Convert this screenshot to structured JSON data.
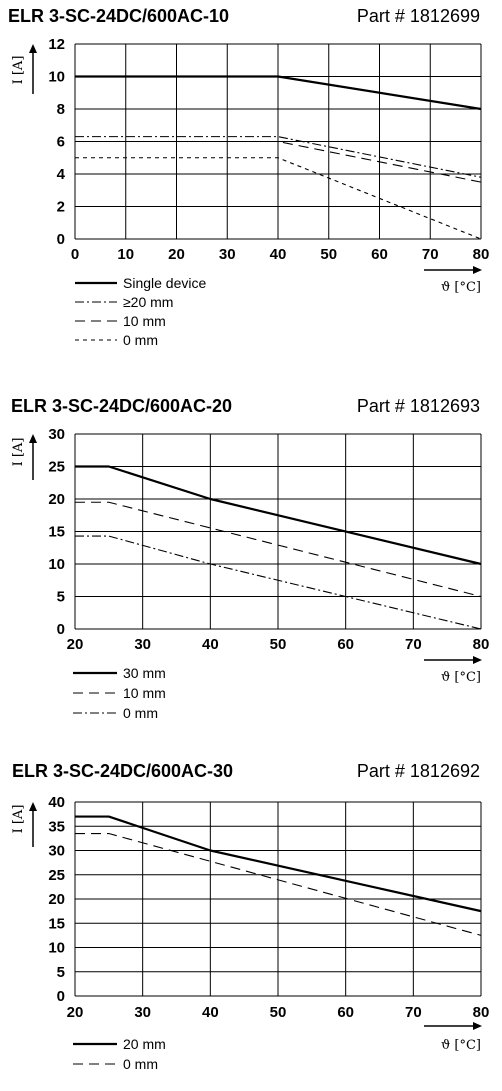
{
  "chart_data": [
    {
      "type": "line",
      "title": "ELR 3-SC-24DC/600AC-10",
      "part_label": "Part # 1812699",
      "ylabel": "I [A]",
      "xlabel": "ϑ [°C]",
      "xlim": [
        0,
        80
      ],
      "ylim": [
        0,
        12
      ],
      "x_ticks": [
        0,
        10,
        20,
        30,
        40,
        50,
        60,
        70,
        80
      ],
      "y_ticks": [
        0,
        2,
        4,
        6,
        8,
        10,
        12
      ],
      "grid": true,
      "legend_position": "bottom-left",
      "series": [
        {
          "name": "Single device",
          "style": "solid",
          "x": [
            0,
            40,
            80
          ],
          "y": [
            10,
            10,
            8
          ]
        },
        {
          "name": "≥20 mm",
          "style": "dashdot",
          "x": [
            0,
            40,
            80
          ],
          "y": [
            6.3,
            6.3,
            3.8
          ]
        },
        {
          "name": "10 mm",
          "style": "dashed",
          "x": [
            0,
            40,
            80
          ],
          "y": [
            6,
            6,
            3.5
          ]
        },
        {
          "name": "0 mm",
          "style": "dotted",
          "x": [
            0,
            40,
            80
          ],
          "y": [
            5,
            5,
            0
          ]
        }
      ]
    },
    {
      "type": "line",
      "title": "ELR 3-SC-24DC/600AC-20",
      "part_label": "Part # 1812693",
      "ylabel": "I [A]",
      "xlabel": "ϑ [°C]",
      "xlim": [
        20,
        80
      ],
      "ylim": [
        0,
        30
      ],
      "x_ticks": [
        20,
        30,
        40,
        50,
        60,
        70,
        80
      ],
      "y_ticks": [
        0,
        5,
        10,
        15,
        20,
        25,
        30
      ],
      "grid": true,
      "legend_position": "bottom-left",
      "series": [
        {
          "name": "30 mm",
          "style": "solid",
          "x": [
            20,
            25,
            40,
            80
          ],
          "y": [
            25,
            25,
            20,
            10
          ]
        },
        {
          "name": "10 mm",
          "style": "dashed",
          "x": [
            20,
            25,
            80
          ],
          "y": [
            19.5,
            19.5,
            5
          ]
        },
        {
          "name": "0 mm",
          "style": "dashdot",
          "x": [
            20,
            25,
            40,
            80
          ],
          "y": [
            14.3,
            14.3,
            10,
            0
          ]
        }
      ]
    },
    {
      "type": "line",
      "title": "ELR 3-SC-24DC/600AC-30",
      "part_label": "Part # 1812692",
      "ylabel": "I [A]",
      "xlabel": "ϑ [°C]",
      "xlim": [
        20,
        80
      ],
      "ylim": [
        0,
        40
      ],
      "x_ticks": [
        20,
        30,
        40,
        50,
        60,
        70,
        80
      ],
      "y_ticks": [
        0,
        5,
        10,
        15,
        20,
        25,
        30,
        35,
        40
      ],
      "grid": true,
      "legend_position": "bottom-left",
      "series": [
        {
          "name": "20 mm",
          "style": "solid",
          "x": [
            20,
            25,
            40,
            80
          ],
          "y": [
            37,
            37,
            30,
            17.5
          ]
        },
        {
          "name": "0 mm",
          "style": "dashed",
          "x": [
            20,
            25,
            80
          ],
          "y": [
            33.5,
            33.5,
            12.5
          ]
        }
      ]
    }
  ]
}
